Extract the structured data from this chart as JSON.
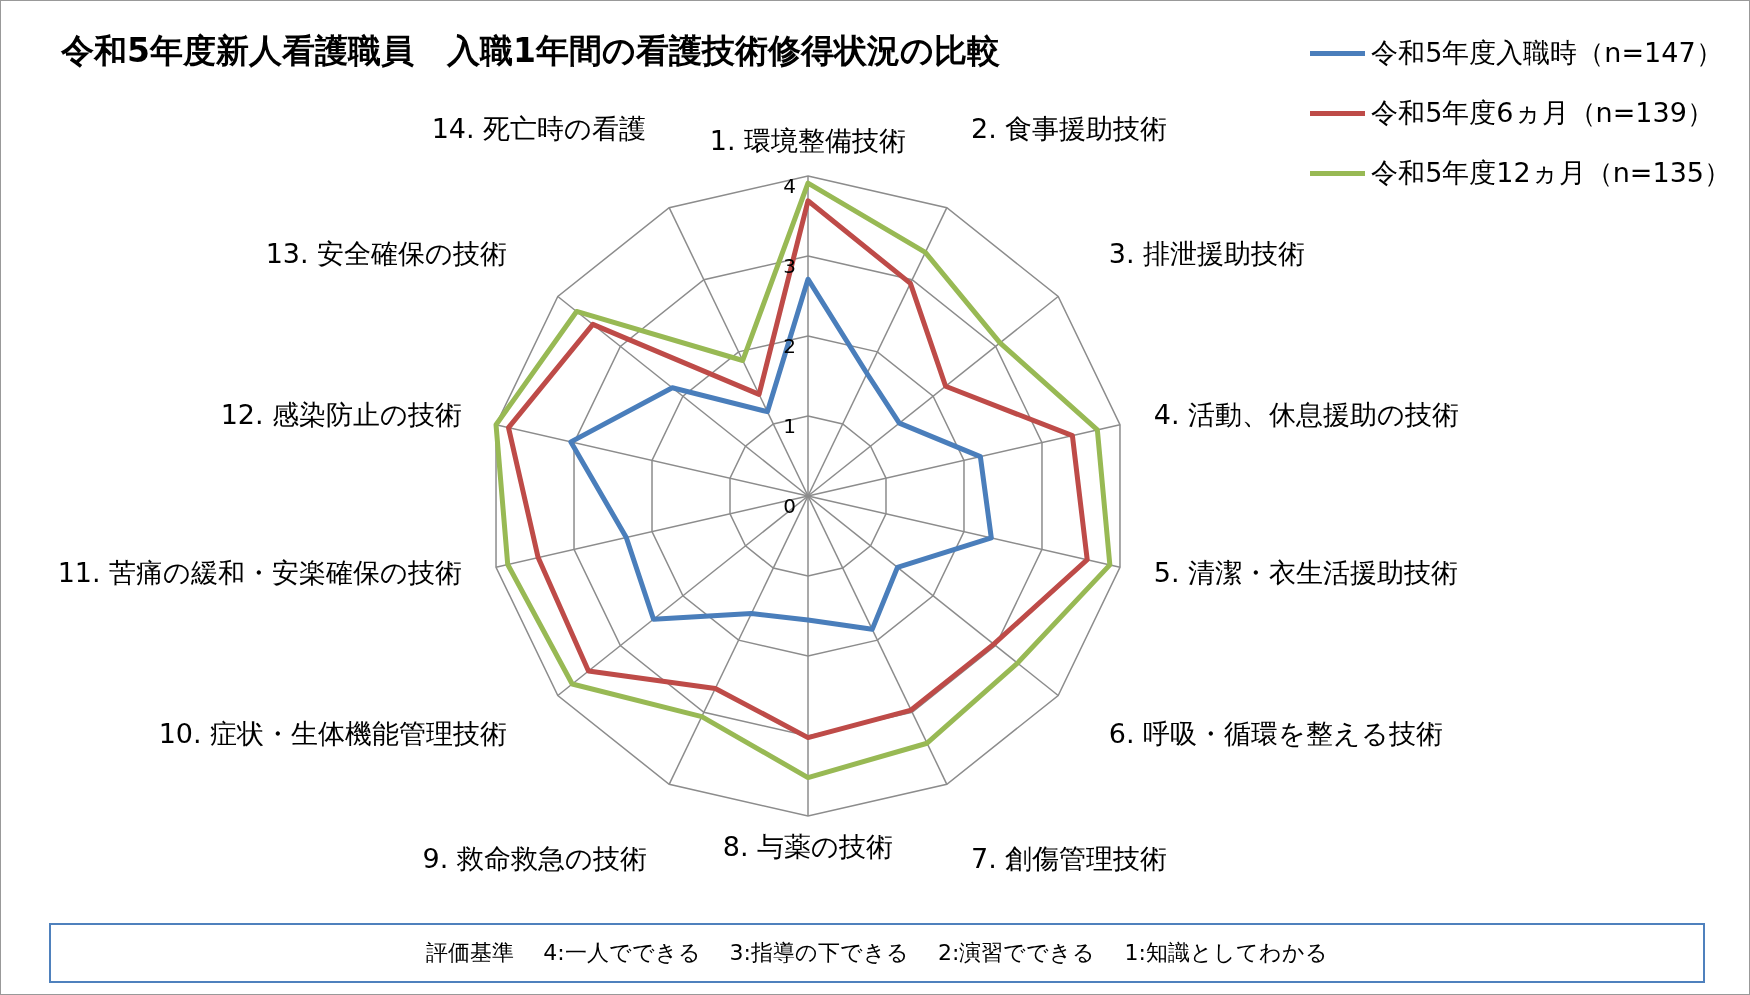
{
  "chart_data": {
    "type": "radar",
    "title": "令和5年度新人看護職員　入職1年間の看護技術修得状況の比較",
    "categories": [
      "1. 環境整備技術",
      "2. 食事援助技術",
      "3. 排泄援助技術",
      "4. 活動、休息援助の技術",
      "5. 清潔・衣生活援助技術",
      "6. 呼吸・循環を整える技術",
      "7. 創傷管理技術",
      "8. 与薬の技術",
      "9. 救命救急の技術",
      "10. 症状・生体機能管理技術",
      "11. 苦痛の緩和・安楽確保の技術",
      "12. 感染防止の技術",
      "13. 安全確保の技術",
      "14. 死亡時の看護"
    ],
    "series": [
      {
        "name": "令和5年度入職時（n=147）",
        "color": "#4a7ebb",
        "values": [
          2.71,
          1.7,
          1.46,
          2.21,
          2.35,
          1.43,
          1.85,
          1.55,
          1.63,
          2.47,
          2.33,
          3.04,
          2.17,
          1.17
        ]
      },
      {
        "name": "令和5年度6ヵ月（n=139）",
        "color": "#be4b48",
        "values": [
          3.69,
          2.95,
          2.2,
          3.39,
          3.58,
          2.97,
          2.97,
          3.02,
          2.67,
          3.51,
          3.46,
          3.84,
          3.44,
          1.41
        ]
      },
      {
        "name": "令和5年度12ヵ月（n=135）",
        "color": "#98b954",
        "values": [
          3.91,
          3.38,
          3.07,
          3.71,
          3.87,
          3.35,
          3.43,
          3.52,
          3.06,
          3.77,
          3.85,
          4.0,
          3.7,
          1.88
        ]
      }
    ],
    "ylim": [
      0,
      4
    ],
    "yticks": [
      0,
      1,
      2,
      3,
      4
    ],
    "grid": true,
    "legend": "top right",
    "marker": "none",
    "annotations": [
      "評価基準　 4:一人でできる　 3:指導の下できる　 2:演習でできる　 1:知識としてわかる"
    ]
  }
}
